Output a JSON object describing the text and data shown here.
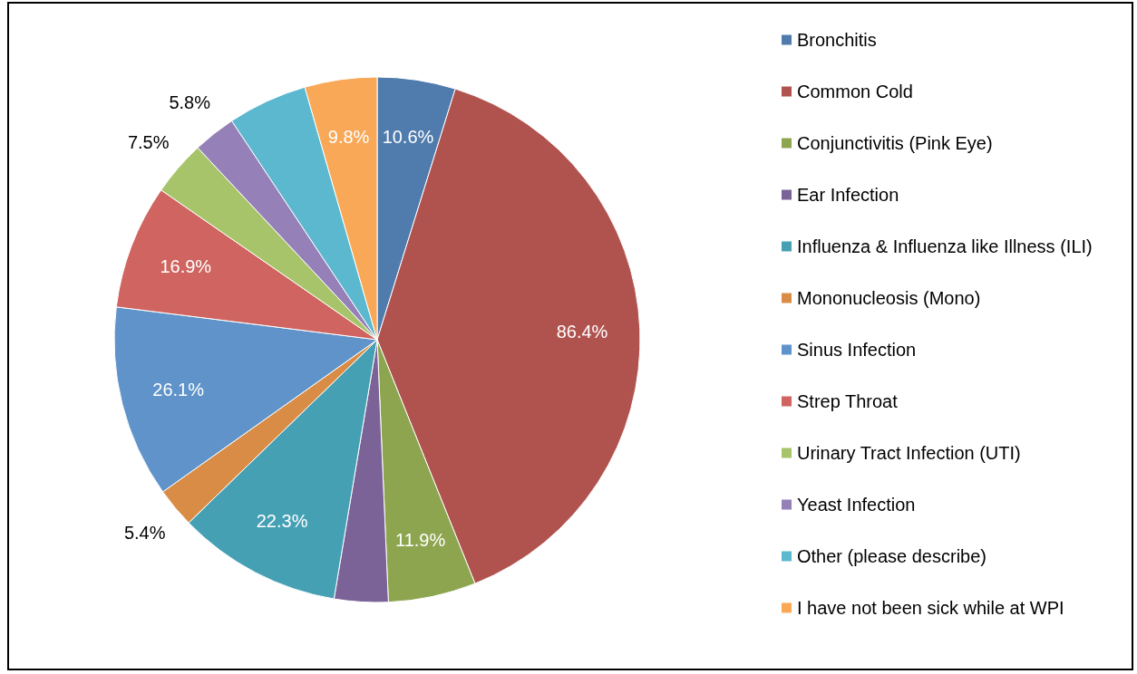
{
  "chart_data": {
    "type": "pie",
    "categories": [
      "Bronchitis",
      "Common Cold",
      "Conjunctivitis (Pink Eye)",
      "Ear Infection",
      "Influenza & Influenza like Illness (ILI)",
      "Mononucleosis (Mono)",
      "Sinus Infection",
      "Strep Throat",
      "Urinary Tract Infection (UTI)",
      "Yeast Infection",
      "Other (please describe)",
      "I have not been sick while at WPI"
    ],
    "values": [
      10.6,
      86.4,
      11.9,
      7.3,
      22.3,
      5.4,
      26.1,
      16.9,
      7.5,
      5.8,
      10.8,
      9.8
    ],
    "value_labels": [
      "10.6%",
      "86.4%",
      "11.9%",
      null,
      "22.3%",
      "5.4%",
      "26.1%",
      "16.9%",
      "7.5%",
      "5.8%",
      null,
      "9.8%"
    ],
    "colors": [
      "#4f7bad",
      "#b0534f",
      "#8ea54f",
      "#7b6397",
      "#45a0b4",
      "#d98c45",
      "#5f93c9",
      "#cf6460",
      "#a8c46a",
      "#9580b8",
      "#5bb8cf",
      "#f9a857"
    ],
    "legend": "right"
  }
}
